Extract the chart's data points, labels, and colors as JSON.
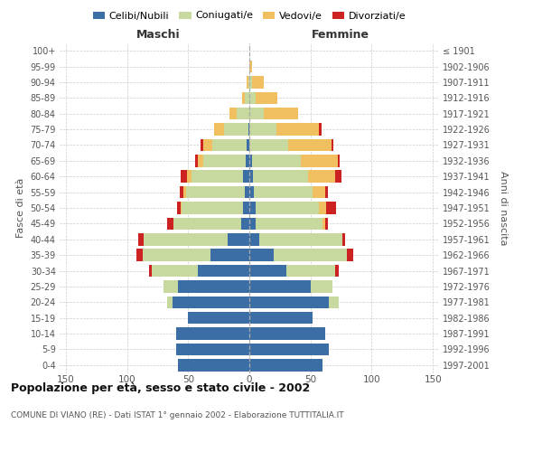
{
  "age_groups": [
    "0-4",
    "5-9",
    "10-14",
    "15-19",
    "20-24",
    "25-29",
    "30-34",
    "35-39",
    "40-44",
    "45-49",
    "50-54",
    "55-59",
    "60-64",
    "65-69",
    "70-74",
    "75-79",
    "80-84",
    "85-89",
    "90-94",
    "95-99",
    "100+"
  ],
  "birth_years": [
    "1997-2001",
    "1992-1996",
    "1987-1991",
    "1982-1986",
    "1977-1981",
    "1972-1976",
    "1967-1971",
    "1962-1966",
    "1957-1961",
    "1952-1956",
    "1947-1951",
    "1942-1946",
    "1937-1941",
    "1932-1936",
    "1927-1931",
    "1922-1926",
    "1917-1921",
    "1912-1916",
    "1907-1911",
    "1902-1906",
    "≤ 1901"
  ],
  "maschi": {
    "celibi": [
      58,
      60,
      60,
      50,
      63,
      58,
      42,
      32,
      18,
      7,
      5,
      4,
      5,
      3,
      2,
      1,
      0,
      0,
      0,
      0,
      0
    ],
    "coniugati": [
      0,
      0,
      0,
      0,
      4,
      12,
      38,
      55,
      68,
      55,
      50,
      48,
      42,
      35,
      28,
      20,
      10,
      4,
      1,
      0,
      0
    ],
    "vedovi": [
      0,
      0,
      0,
      0,
      0,
      0,
      0,
      0,
      0,
      0,
      1,
      2,
      4,
      4,
      8,
      8,
      6,
      2,
      1,
      0,
      0
    ],
    "divorziati": [
      0,
      0,
      0,
      0,
      0,
      0,
      2,
      5,
      5,
      5,
      3,
      3,
      5,
      2,
      2,
      0,
      0,
      0,
      0,
      0,
      0
    ]
  },
  "femmine": {
    "nubili": [
      60,
      65,
      62,
      52,
      65,
      50,
      30,
      20,
      8,
      5,
      5,
      4,
      3,
      2,
      0,
      0,
      0,
      0,
      0,
      0,
      0
    ],
    "coniugate": [
      0,
      0,
      0,
      0,
      8,
      18,
      40,
      60,
      68,
      55,
      52,
      48,
      45,
      40,
      32,
      22,
      12,
      5,
      2,
      0,
      0
    ],
    "vedove": [
      0,
      0,
      0,
      0,
      0,
      0,
      0,
      0,
      0,
      2,
      6,
      10,
      22,
      30,
      35,
      35,
      28,
      18,
      10,
      2,
      0
    ],
    "divorziate": [
      0,
      0,
      0,
      0,
      0,
      0,
      3,
      5,
      2,
      2,
      8,
      2,
      5,
      2,
      2,
      2,
      0,
      0,
      0,
      0,
      0
    ]
  },
  "colors": {
    "celibi": "#3a6ea5",
    "coniugati": "#c8d9a0",
    "vedovi": "#f0c060",
    "divorziati": "#cc2222"
  },
  "xlim": 155,
  "title": "Popolazione per età, sesso e stato civile - 2002",
  "subtitle": "COMUNE DI VIANO (RE) - Dati ISTAT 1° gennaio 2002 - Elaborazione TUTTITALIA.IT",
  "ylabel_left": "Fasce di età",
  "ylabel_right": "Anni di nascita",
  "label_maschi": "Maschi",
  "label_femmine": "Femmine"
}
